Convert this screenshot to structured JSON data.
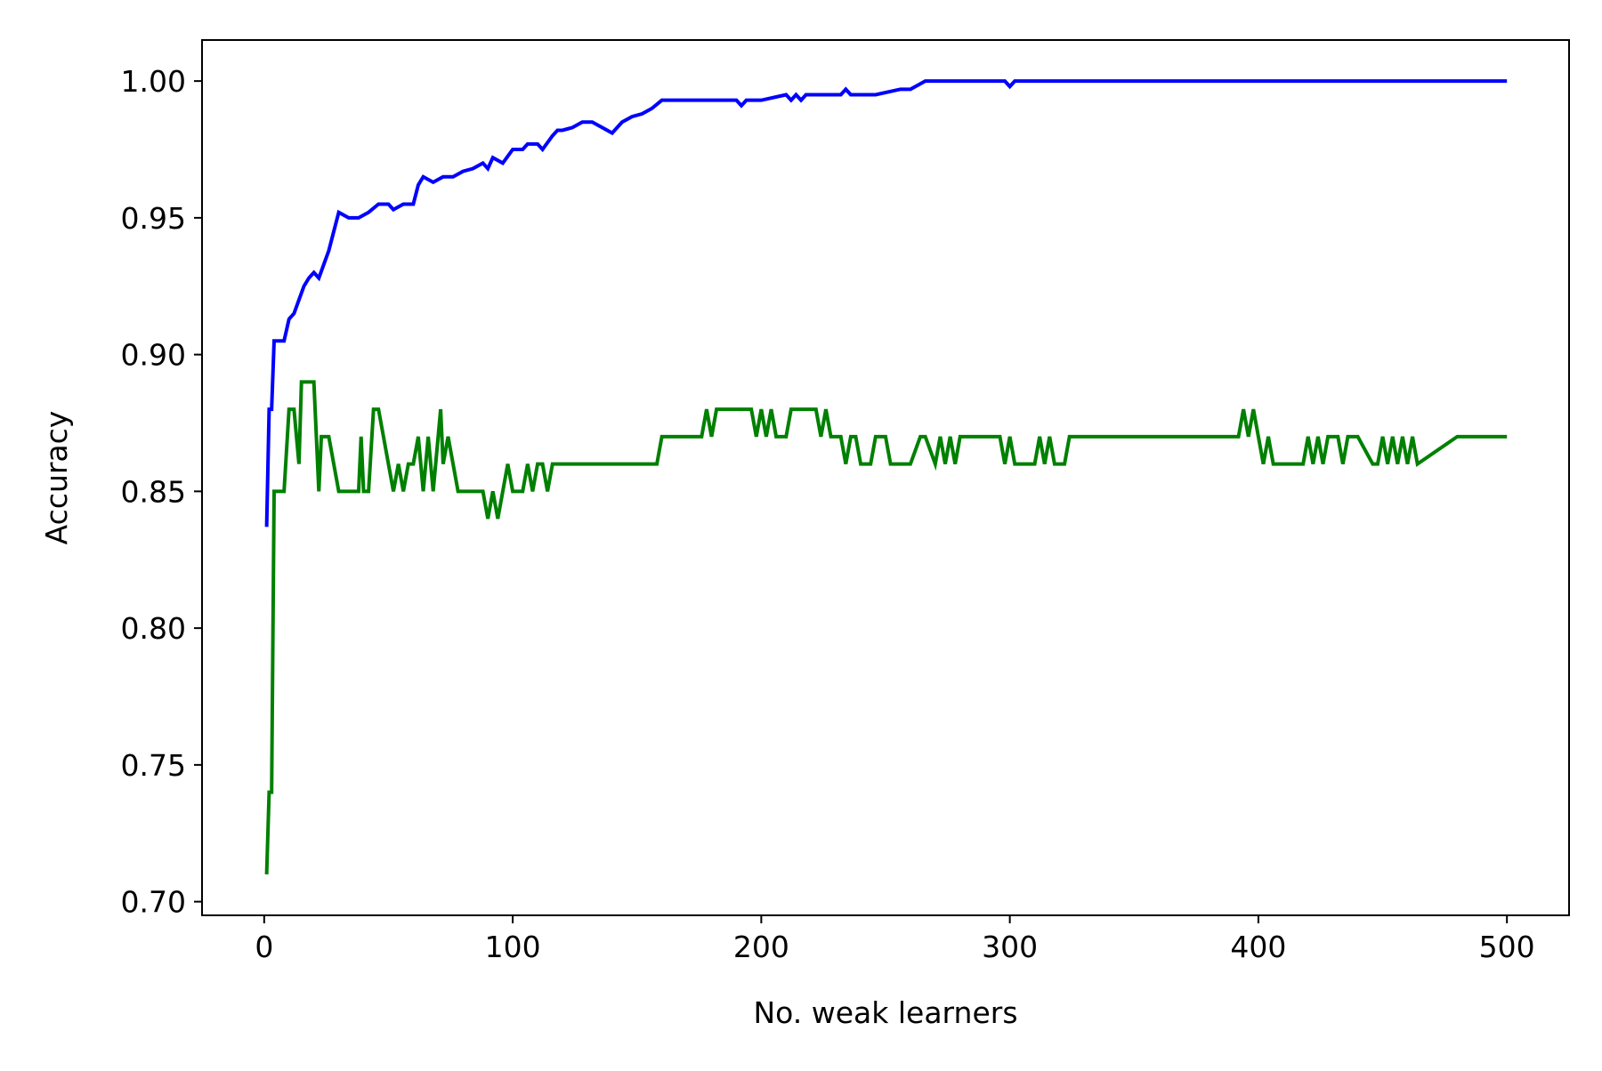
{
  "chart_data": {
    "type": "line",
    "title": "",
    "xlabel": "No. weak learners",
    "ylabel": "Accuracy",
    "xlim": [
      -25,
      525
    ],
    "ylim": [
      0.695,
      1.015
    ],
    "x_ticks": [
      0,
      100,
      200,
      300,
      400,
      500
    ],
    "x_tick_labels": [
      "0",
      "100",
      "200",
      "300",
      "400",
      "500"
    ],
    "y_ticks": [
      0.7,
      0.75,
      0.8,
      0.85,
      0.9,
      0.95,
      1.0
    ],
    "y_tick_labels": [
      "0.70",
      "0.75",
      "0.80",
      "0.85",
      "0.90",
      "0.95",
      "1.00"
    ],
    "grid": false,
    "legend": "none",
    "series": [
      {
        "color": "#0000ff",
        "x": [
          1,
          2,
          3,
          4,
          5,
          8,
          10,
          12,
          14,
          16,
          18,
          20,
          22,
          24,
          26,
          28,
          30,
          34,
          38,
          42,
          46,
          50,
          52,
          56,
          60,
          62,
          64,
          68,
          72,
          76,
          80,
          84,
          88,
          90,
          92,
          96,
          100,
          104,
          106,
          110,
          112,
          116,
          118,
          120,
          124,
          128,
          132,
          136,
          140,
          144,
          148,
          152,
          156,
          160,
          170,
          180,
          190,
          192,
          194,
          196,
          200,
          210,
          212,
          214,
          216,
          218,
          220,
          232,
          234,
          236,
          240,
          246,
          256,
          260,
          266,
          276,
          280,
          298,
          300,
          302,
          320,
          360,
          400,
          450,
          500
        ],
        "y": [
          0.837,
          0.88,
          0.88,
          0.905,
          0.905,
          0.905,
          0.913,
          0.915,
          0.92,
          0.925,
          0.928,
          0.93,
          0.928,
          0.933,
          0.938,
          0.945,
          0.952,
          0.95,
          0.95,
          0.952,
          0.955,
          0.955,
          0.953,
          0.955,
          0.955,
          0.962,
          0.965,
          0.963,
          0.965,
          0.965,
          0.967,
          0.968,
          0.97,
          0.968,
          0.972,
          0.97,
          0.975,
          0.975,
          0.977,
          0.977,
          0.975,
          0.98,
          0.982,
          0.982,
          0.983,
          0.985,
          0.985,
          0.983,
          0.981,
          0.985,
          0.987,
          0.988,
          0.99,
          0.993,
          0.993,
          0.993,
          0.993,
          0.991,
          0.993,
          0.993,
          0.993,
          0.995,
          0.993,
          0.995,
          0.993,
          0.995,
          0.995,
          0.995,
          0.997,
          0.995,
          0.995,
          0.995,
          0.997,
          0.997,
          1.0,
          1.0,
          1.0,
          1.0,
          0.998,
          1.0,
          1.0,
          1.0,
          1.0,
          1.0,
          1.0
        ]
      },
      {
        "color": "#008000",
        "x": [
          1,
          2,
          3,
          4,
          5,
          8,
          10,
          12,
          14,
          15,
          16,
          18,
          20,
          22,
          23,
          24,
          26,
          30,
          32,
          34,
          36,
          38,
          39,
          40,
          42,
          44,
          46,
          48,
          50,
          52,
          54,
          56,
          58,
          60,
          62,
          64,
          66,
          68,
          70,
          71,
          72,
          74,
          76,
          78,
          80,
          84,
          86,
          88,
          90,
          92,
          94,
          96,
          98,
          100,
          104,
          106,
          108,
          110,
          112,
          114,
          116,
          120,
          140,
          158,
          160,
          176,
          178,
          180,
          182,
          196,
          198,
          200,
          202,
          204,
          206,
          210,
          212,
          222,
          224,
          226,
          228,
          230,
          232,
          234,
          236,
          238,
          240,
          244,
          246,
          250,
          252,
          256,
          260,
          264,
          266,
          270,
          272,
          274,
          276,
          278,
          280,
          290,
          296,
          298,
          300,
          302,
          304,
          306,
          310,
          312,
          314,
          316,
          318,
          320,
          322,
          324,
          340,
          380,
          392,
          394,
          396,
          398,
          400,
          402,
          404,
          406,
          412,
          418,
          420,
          422,
          424,
          426,
          428,
          430,
          432,
          434,
          436,
          440,
          446,
          448,
          450,
          452,
          454,
          456,
          458,
          460,
          462,
          464,
          480,
          500
        ],
        "y": [
          0.71,
          0.74,
          0.74,
          0.85,
          0.85,
          0.85,
          0.88,
          0.88,
          0.86,
          0.89,
          0.89,
          0.89,
          0.89,
          0.85,
          0.87,
          0.87,
          0.87,
          0.85,
          0.85,
          0.85,
          0.85,
          0.85,
          0.87,
          0.85,
          0.85,
          0.88,
          0.88,
          0.87,
          0.86,
          0.85,
          0.86,
          0.85,
          0.86,
          0.86,
          0.87,
          0.85,
          0.87,
          0.85,
          0.87,
          0.88,
          0.86,
          0.87,
          0.86,
          0.85,
          0.85,
          0.85,
          0.85,
          0.85,
          0.84,
          0.85,
          0.84,
          0.85,
          0.86,
          0.85,
          0.85,
          0.86,
          0.85,
          0.86,
          0.86,
          0.85,
          0.86,
          0.86,
          0.86,
          0.86,
          0.87,
          0.87,
          0.88,
          0.87,
          0.88,
          0.88,
          0.87,
          0.88,
          0.87,
          0.88,
          0.87,
          0.87,
          0.88,
          0.88,
          0.87,
          0.88,
          0.87,
          0.87,
          0.87,
          0.86,
          0.87,
          0.87,
          0.86,
          0.86,
          0.87,
          0.87,
          0.86,
          0.86,
          0.86,
          0.87,
          0.87,
          0.86,
          0.87,
          0.86,
          0.87,
          0.86,
          0.87,
          0.87,
          0.87,
          0.86,
          0.87,
          0.86,
          0.86,
          0.86,
          0.86,
          0.87,
          0.86,
          0.87,
          0.86,
          0.86,
          0.86,
          0.87,
          0.87,
          0.87,
          0.87,
          0.88,
          0.87,
          0.88,
          0.87,
          0.86,
          0.87,
          0.86,
          0.86,
          0.86,
          0.87,
          0.86,
          0.87,
          0.86,
          0.87,
          0.87,
          0.87,
          0.86,
          0.87,
          0.87,
          0.86,
          0.86,
          0.87,
          0.86,
          0.87,
          0.86,
          0.87,
          0.86,
          0.87,
          0.86,
          0.87,
          0.87
        ]
      }
    ]
  }
}
